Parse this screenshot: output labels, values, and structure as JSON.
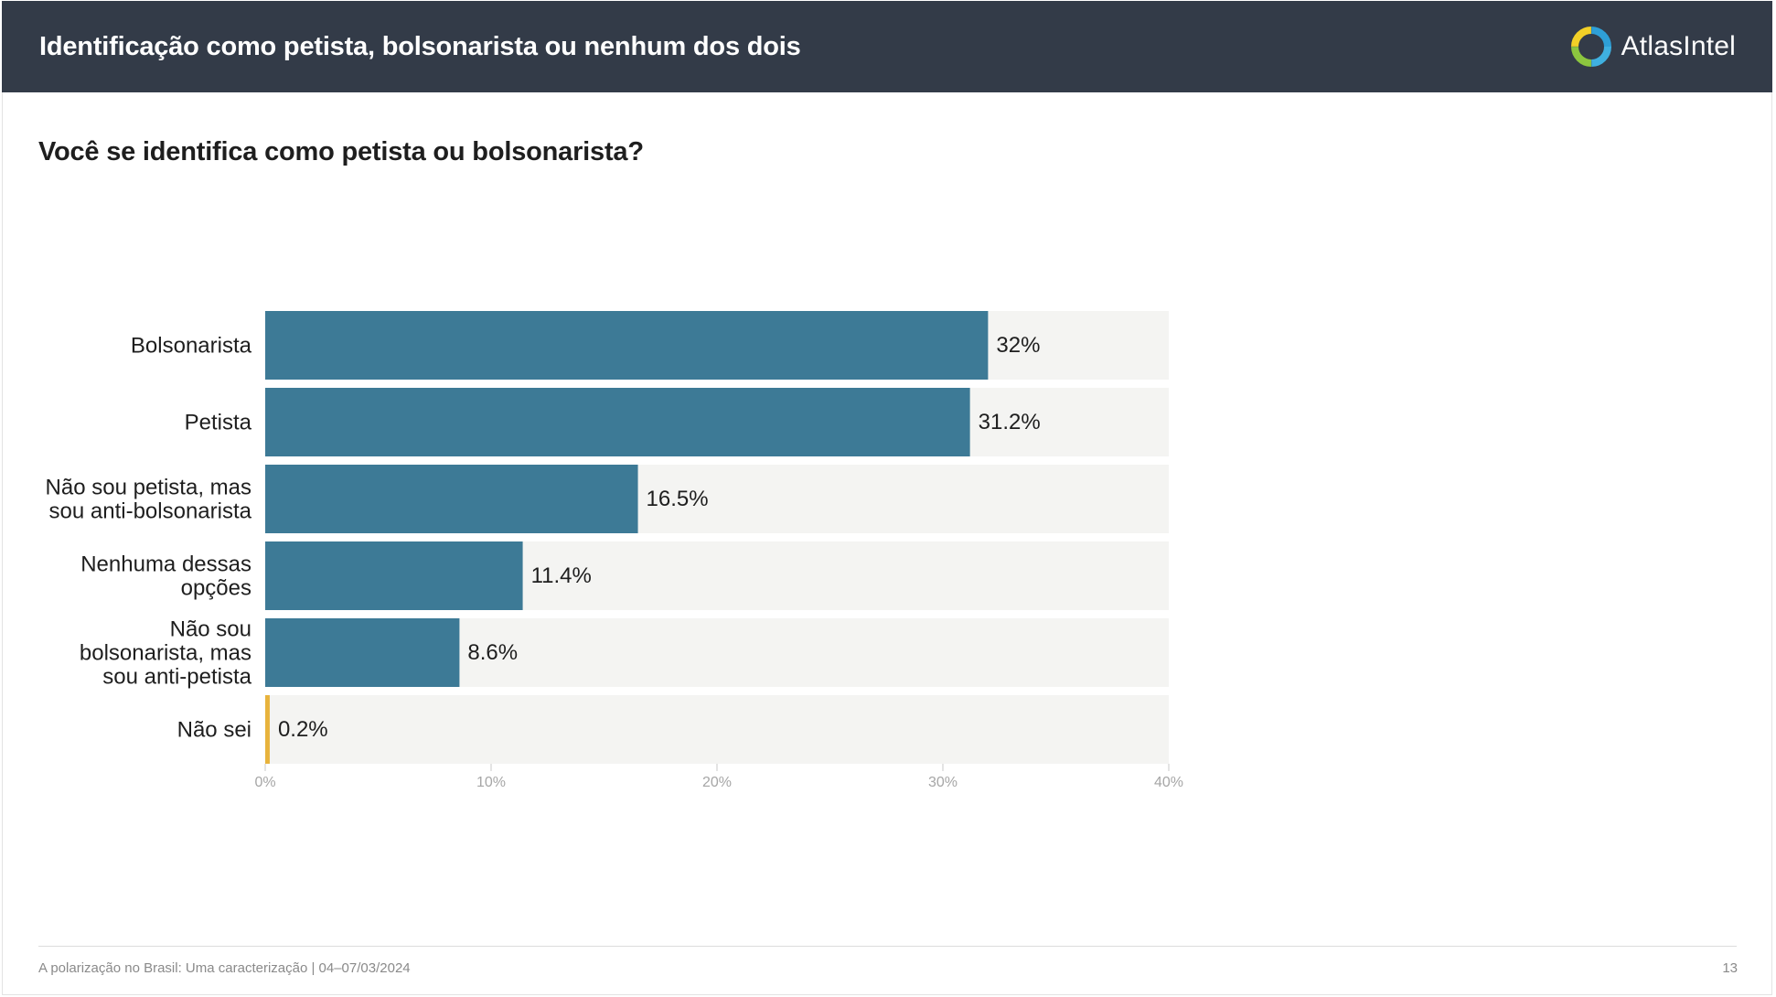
{
  "header": {
    "title": "Identificação como petista, bolsonarista ou nenhum dos dois",
    "logo_text": "AtlasIntel",
    "background": "#333b48"
  },
  "chart_data": {
    "type": "bar",
    "orientation": "horizontal",
    "title": "Você se identifica como petista ou bolsonarista?",
    "categories": [
      [
        "Bolsonarista"
      ],
      [
        "Petista"
      ],
      [
        "Não sou petista, mas",
        "sou anti-bolsonarista"
      ],
      [
        "Nenhuma dessas",
        "opções"
      ],
      [
        "Não sou",
        "bolsonarista, mas",
        "sou anti-petista"
      ],
      [
        "Não sei"
      ]
    ],
    "values": [
      32,
      31.2,
      16.5,
      11.4,
      8.6,
      0.2
    ],
    "value_labels": [
      "32%",
      "31.2%",
      "16.5%",
      "11.4%",
      "8.6%",
      "0.2%"
    ],
    "bar_colors": [
      "#3d7a96",
      "#3d7a96",
      "#3d7a96",
      "#3d7a96",
      "#3d7a96",
      "#e8b33c"
    ],
    "track_color": "#f4f4f2",
    "xlim": [
      0,
      40
    ],
    "xticks": [
      0,
      10,
      20,
      30,
      40
    ],
    "xtick_labels": [
      "0%",
      "10%",
      "20%",
      "30%",
      "40%"
    ],
    "xlabel": "",
    "ylabel": ""
  },
  "footer": {
    "source": "A polarização no Brasil: Uma caracterização | 04–07/03/2024",
    "page_number": "13"
  }
}
